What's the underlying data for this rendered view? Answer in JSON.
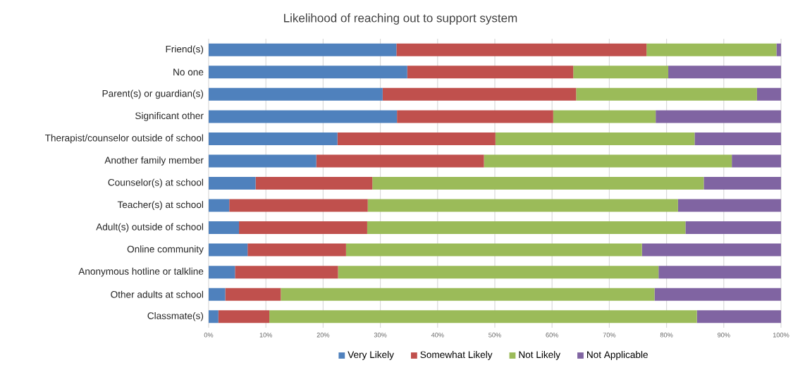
{
  "chart_data": {
    "type": "bar",
    "orientation": "horizontal",
    "stacked": true,
    "title": "Likelihood of reaching out to support system",
    "categories": [
      "Friend(s)",
      "No one",
      "Parent(s) or guardian(s)",
      "Significant other",
      "Therapist/counselor outside of school",
      "Another family member",
      "Counselor(s) at school",
      "Teacher(s) at school",
      "Adult(s) outside of school",
      "Online community",
      "Anonymous hotline or talkline",
      "Other adults at school",
      "Classmate(s)"
    ],
    "series": [
      {
        "name": "Very Likely",
        "color": "#4f81bd",
        "values": [
          32.8,
          34.7,
          30.4,
          32.9,
          22.5,
          18.8,
          8.2,
          3.6,
          5.3,
          6.8,
          4.6,
          2.9,
          1.7
        ]
      },
      {
        "name": "Somewhat Likely",
        "color": "#c0504d",
        "values": [
          43.7,
          29.0,
          33.8,
          27.3,
          27.6,
          29.3,
          20.4,
          24.2,
          22.4,
          17.2,
          18.0,
          9.7,
          8.9
        ]
      },
      {
        "name": "Not Likely",
        "color": "#9bbb59",
        "values": [
          22.7,
          16.6,
          31.6,
          17.9,
          34.8,
          43.3,
          57.9,
          54.2,
          55.6,
          51.7,
          56.0,
          65.3,
          74.7
        ]
      },
      {
        "name": "Not Applicable",
        "color": "#8064a2",
        "values": [
          0.8,
          19.7,
          4.2,
          21.9,
          15.1,
          8.6,
          13.5,
          18.0,
          16.7,
          24.3,
          21.4,
          22.1,
          14.7
        ]
      }
    ],
    "xlim": [
      0,
      100
    ],
    "xticks": [
      {
        "value": 0,
        "label": "0%"
      },
      {
        "value": 10,
        "label": "10%"
      },
      {
        "value": 20,
        "label": "20%"
      },
      {
        "value": 30,
        "label": "30%"
      },
      {
        "value": 40,
        "label": "40%"
      },
      {
        "value": 50,
        "label": "50%"
      },
      {
        "value": 60,
        "label": "60%"
      },
      {
        "value": 70,
        "label": "70%"
      },
      {
        "value": 80,
        "label": "80%"
      },
      {
        "value": 90,
        "label": "90%"
      },
      {
        "value": 100,
        "label": "100%"
      }
    ],
    "grid": "x",
    "legend": "bottom"
  }
}
